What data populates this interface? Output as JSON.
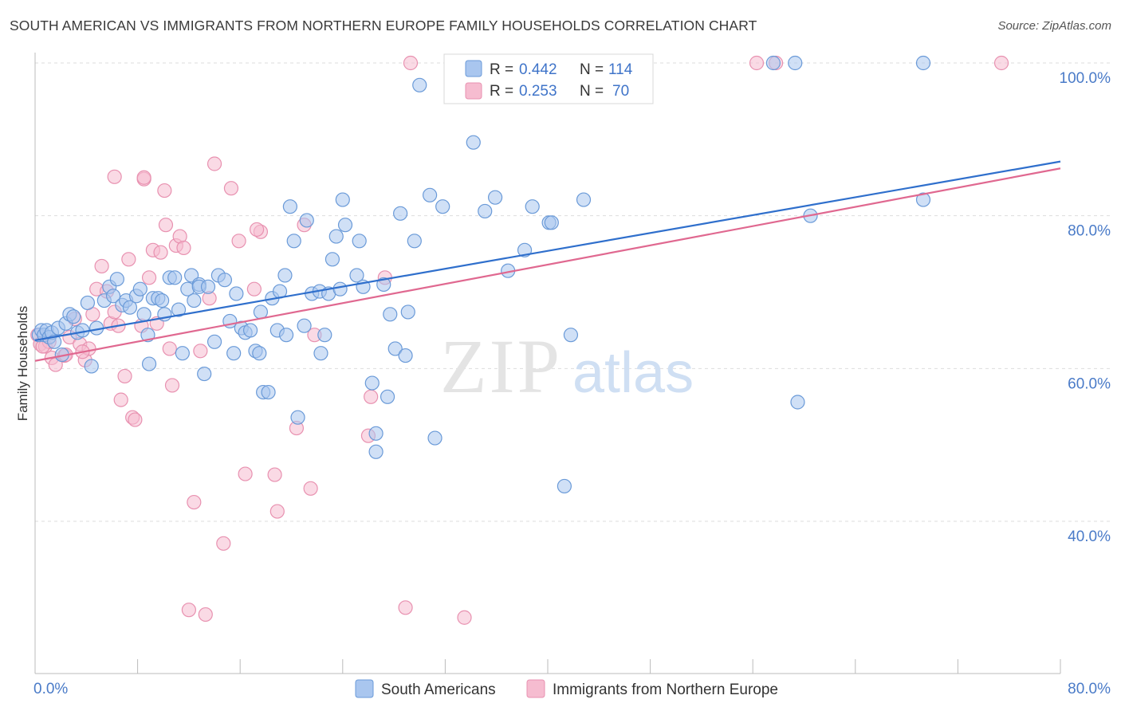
{
  "title": "SOUTH AMERICAN VS IMMIGRANTS FROM NORTHERN EUROPE FAMILY HOUSEHOLDS CORRELATION CHART",
  "source": "Source: ZipAtlas.com",
  "watermark": {
    "zip": "ZIP",
    "atlas": "atlas"
  },
  "colors": {
    "blue_fill": "#a9c6ef",
    "blue_stroke": "#6a9ad8",
    "blue_line": "#2f6fcc",
    "pink_fill": "#f6bcd0",
    "pink_stroke": "#e891b0",
    "pink_line": "#e06890",
    "tick_text": "#4a7bc8",
    "grid": "#dddddd"
  },
  "legend": {
    "rows": [
      {
        "r_label": "R =",
        "r_value": "0.442",
        "n_label": "N =",
        "n_value": "114"
      },
      {
        "r_label": "R =",
        "r_value": "0.253",
        "n_label": "N =",
        "n_value": "70"
      }
    ]
  },
  "chart_data": {
    "type": "scatter",
    "title": "SOUTH AMERICAN VS IMMIGRANTS FROM NORTHERN EUROPE FAMILY HOUSEHOLDS CORRELATION CHART",
    "xlabel": "",
    "ylabel": "Family Households",
    "xlim": [
      0,
      80
    ],
    "ylim": [
      22,
      102
    ],
    "x_tick_labels": [
      "0.0%",
      "80.0%"
    ],
    "y_ticks": [
      40,
      60,
      80,
      100
    ],
    "y_tick_labels": [
      "40.0%",
      "60.0%",
      "80.0%",
      "100.0%"
    ],
    "grid": true,
    "legend_position": "top-center",
    "series": [
      {
        "name": "South Americans",
        "color": "#a9c6ef",
        "trend": {
          "x": [
            0,
            80
          ],
          "y": [
            63.7,
            87.1
          ]
        },
        "points": [
          [
            0.3,
            64.4
          ],
          [
            0.5,
            65
          ],
          [
            0.7,
            64.4
          ],
          [
            0.9,
            65
          ],
          [
            1.1,
            64.1
          ],
          [
            1.3,
            64.7
          ],
          [
            1.5,
            63.5
          ],
          [
            1.8,
            65.3
          ],
          [
            2.1,
            61.8
          ],
          [
            2.4,
            65.9
          ],
          [
            2.7,
            67.1
          ],
          [
            3.0,
            66.8
          ],
          [
            3.3,
            64.7
          ],
          [
            3.7,
            65
          ],
          [
            4.1,
            68.6
          ],
          [
            4.4,
            60.3
          ],
          [
            4.8,
            65.3
          ],
          [
            5.4,
            68.9
          ],
          [
            5.8,
            70.7
          ],
          [
            6.1,
            69.5
          ],
          [
            6.4,
            71.7
          ],
          [
            6.8,
            68.3
          ],
          [
            7.1,
            68.9
          ],
          [
            7.4,
            68
          ],
          [
            7.9,
            69.5
          ],
          [
            8.2,
            70.4
          ],
          [
            8.5,
            67.1
          ],
          [
            8.8,
            64.4
          ],
          [
            8.9,
            60.6
          ],
          [
            9.2,
            69.2
          ],
          [
            9.6,
            69.2
          ],
          [
            9.9,
            68.9
          ],
          [
            10.1,
            67.1
          ],
          [
            10.5,
            71.9
          ],
          [
            10.9,
            71.9
          ],
          [
            11.2,
            67.7
          ],
          [
            11.5,
            62
          ],
          [
            11.9,
            70.4
          ],
          [
            12.2,
            72.2
          ],
          [
            12.4,
            68.9
          ],
          [
            12.8,
            71
          ],
          [
            12.8,
            70.7
          ],
          [
            13.2,
            59.3
          ],
          [
            13.5,
            70.7
          ],
          [
            14.0,
            63.5
          ],
          [
            14.3,
            72.2
          ],
          [
            14.8,
            71.6
          ],
          [
            15.2,
            66.2
          ],
          [
            15.5,
            62
          ],
          [
            15.7,
            69.8
          ],
          [
            16.1,
            65.3
          ],
          [
            16.4,
            64.7
          ],
          [
            16.8,
            65
          ],
          [
            17.2,
            62.3
          ],
          [
            17.5,
            62
          ],
          [
            17.6,
            67.4
          ],
          [
            17.8,
            56.9
          ],
          [
            18.2,
            56.9
          ],
          [
            18.5,
            69.2
          ],
          [
            18.9,
            65
          ],
          [
            19.1,
            70.1
          ],
          [
            19.5,
            72.2
          ],
          [
            19.6,
            64.4
          ],
          [
            19.9,
            81.2
          ],
          [
            20.2,
            76.7
          ],
          [
            20.5,
            53.6
          ],
          [
            21.0,
            65.6
          ],
          [
            21.2,
            79.4
          ],
          [
            21.6,
            69.8
          ],
          [
            22.2,
            70.1
          ],
          [
            22.3,
            62
          ],
          [
            22.6,
            64.4
          ],
          [
            22.9,
            69.8
          ],
          [
            23.2,
            74.3
          ],
          [
            23.5,
            77.3
          ],
          [
            23.8,
            70.4
          ],
          [
            24.0,
            82.1
          ],
          [
            24.2,
            78.8
          ],
          [
            25.1,
            72.2
          ],
          [
            25.3,
            76.7
          ],
          [
            25.6,
            70.7
          ],
          [
            26.3,
            58.1
          ],
          [
            26.6,
            51.5
          ],
          [
            26.6,
            49.1
          ],
          [
            27.2,
            71
          ],
          [
            27.5,
            56.3
          ],
          [
            27.7,
            67.1
          ],
          [
            28.1,
            62.6
          ],
          [
            28.5,
            80.3
          ],
          [
            28.9,
            61.7
          ],
          [
            29.1,
            67.4
          ],
          [
            29.6,
            76.7
          ],
          [
            30.0,
            97.1
          ],
          [
            30.8,
            82.7
          ],
          [
            31.2,
            50.9
          ],
          [
            31.8,
            81.2
          ],
          [
            34.2,
            89.6
          ],
          [
            35.1,
            80.6
          ],
          [
            35.9,
            82.4
          ],
          [
            36.9,
            72.8
          ],
          [
            38.2,
            75.5
          ],
          [
            38.8,
            81.2
          ],
          [
            40.1,
            79.1
          ],
          [
            40.3,
            79.1
          ],
          [
            41.3,
            44.6
          ],
          [
            41.8,
            64.4
          ],
          [
            42.8,
            82.1
          ],
          [
            59.5,
            55.6
          ],
          [
            60.5,
            80
          ],
          [
            69.3,
            82.1
          ],
          [
            59.3,
            100
          ],
          [
            57.6,
            100
          ],
          [
            43.7,
            100
          ],
          [
            69.3,
            100
          ]
        ]
      },
      {
        "name": "Immigrants from Northern Europe",
        "color": "#f6bcd0",
        "trend": {
          "x": [
            0,
            80
          ],
          "y": [
            61,
            86.2
          ]
        },
        "points": [
          [
            0.2,
            64.4
          ],
          [
            0.4,
            63.2
          ],
          [
            0.8,
            62.9
          ],
          [
            1.3,
            61.4
          ],
          [
            1.6,
            60.5
          ],
          [
            2.3,
            61.7
          ],
          [
            2.7,
            64.1
          ],
          [
            3.1,
            66.5
          ],
          [
            3.5,
            63.2
          ],
          [
            3.9,
            61.1
          ],
          [
            4.2,
            62.6
          ],
          [
            4.5,
            67.1
          ],
          [
            4.8,
            70.4
          ],
          [
            5.2,
            73.4
          ],
          [
            5.6,
            70.1
          ],
          [
            5.9,
            65.9
          ],
          [
            6.2,
            67.4
          ],
          [
            6.5,
            65.6
          ],
          [
            6.7,
            55.9
          ],
          [
            7.0,
            59
          ],
          [
            7.3,
            74.3
          ],
          [
            7.6,
            53.6
          ],
          [
            7.8,
            53.3
          ],
          [
            8.3,
            65.6
          ],
          [
            8.5,
            84.8
          ],
          [
            8.9,
            71.9
          ],
          [
            9.2,
            75.5
          ],
          [
            9.5,
            65.9
          ],
          [
            9.8,
            75.2
          ],
          [
            10.1,
            83.3
          ],
          [
            10.5,
            62.6
          ],
          [
            10.7,
            57.8
          ],
          [
            11.0,
            76.1
          ],
          [
            11.3,
            77.3
          ],
          [
            11.6,
            75.8
          ],
          [
            12.0,
            28.4
          ],
          [
            12.4,
            42.5
          ],
          [
            12.9,
            62.3
          ],
          [
            13.3,
            27.8
          ],
          [
            13.6,
            69.2
          ],
          [
            14.0,
            86.8
          ],
          [
            14.7,
            37.1
          ],
          [
            15.3,
            83.6
          ],
          [
            15.9,
            76.7
          ],
          [
            16.4,
            46.2
          ],
          [
            17.1,
            70.4
          ],
          [
            17.6,
            77.9
          ],
          [
            18.7,
            46.1
          ],
          [
            18.9,
            41.3
          ],
          [
            20.4,
            52.2
          ],
          [
            21.0,
            78.8
          ],
          [
            21.5,
            44.3
          ],
          [
            21.8,
            64.4
          ],
          [
            26.0,
            51.2
          ],
          [
            26.2,
            56.3
          ],
          [
            27.3,
            71.9
          ],
          [
            28.9,
            28.7
          ],
          [
            33.5,
            27.4
          ],
          [
            8.5,
            85
          ],
          [
            6.2,
            85.1
          ],
          [
            10.2,
            78.8
          ],
          [
            17.3,
            78.2
          ],
          [
            3.7,
            62.2
          ],
          [
            2.4,
            61.8
          ],
          [
            1.1,
            63.5
          ],
          [
            0.6,
            62.9
          ],
          [
            56.3,
            100
          ],
          [
            57.8,
            100
          ],
          [
            75.4,
            100
          ],
          [
            29.3,
            100
          ]
        ]
      }
    ]
  }
}
